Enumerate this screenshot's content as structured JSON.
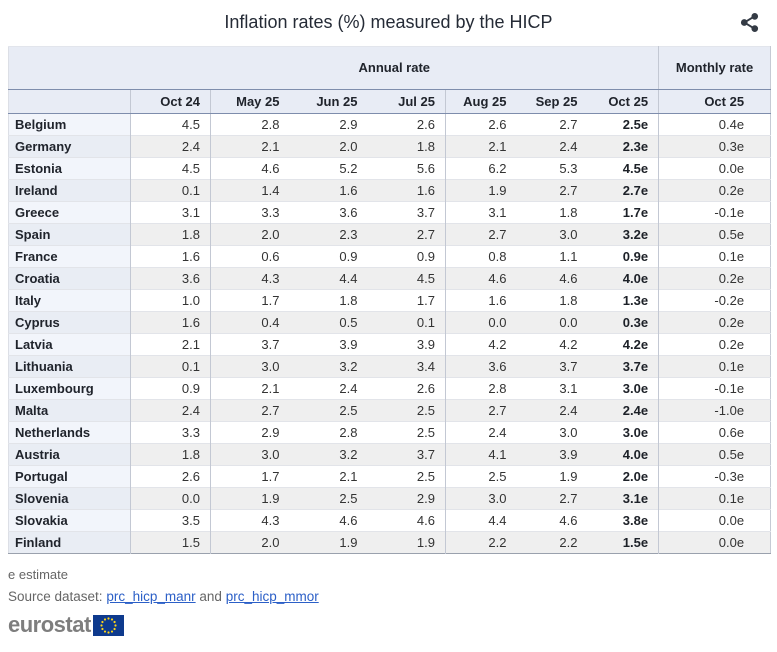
{
  "header": {
    "title": "Inflation rates (%) measured by the HICP"
  },
  "chart_data": {
    "type": "table",
    "title": "Inflation rates (%) measured by the HICP",
    "column_groups": {
      "annual": "Annual rate",
      "monthly": "Monthly rate"
    },
    "columns": [
      "Oct 24",
      "May 25",
      "Jun 25",
      "Jul 25",
      "Aug 25",
      "Sep 25",
      "Oct 25"
    ],
    "monthly_column_label": "Oct 25",
    "rows": [
      {
        "country": "Belgium",
        "annual": [
          "4.5",
          "2.8",
          "2.9",
          "2.6",
          "2.6",
          "2.7"
        ],
        "latest": "2.5e",
        "monthly": "0.4e"
      },
      {
        "country": "Germany",
        "annual": [
          "2.4",
          "2.1",
          "2.0",
          "1.8",
          "2.1",
          "2.4"
        ],
        "latest": "2.3e",
        "monthly": "0.3e"
      },
      {
        "country": "Estonia",
        "annual": [
          "4.5",
          "4.6",
          "5.2",
          "5.6",
          "6.2",
          "5.3"
        ],
        "latest": "4.5e",
        "monthly": "0.0e"
      },
      {
        "country": "Ireland",
        "annual": [
          "0.1",
          "1.4",
          "1.6",
          "1.6",
          "1.9",
          "2.7"
        ],
        "latest": "2.7e",
        "monthly": "0.2e"
      },
      {
        "country": "Greece",
        "annual": [
          "3.1",
          "3.3",
          "3.6",
          "3.7",
          "3.1",
          "1.8"
        ],
        "latest": "1.7e",
        "monthly": "-0.1e"
      },
      {
        "country": "Spain",
        "annual": [
          "1.8",
          "2.0",
          "2.3",
          "2.7",
          "2.7",
          "3.0"
        ],
        "latest": "3.2e",
        "monthly": "0.5e"
      },
      {
        "country": "France",
        "annual": [
          "1.6",
          "0.6",
          "0.9",
          "0.9",
          "0.8",
          "1.1"
        ],
        "latest": "0.9e",
        "monthly": "0.1e"
      },
      {
        "country": "Croatia",
        "annual": [
          "3.6",
          "4.3",
          "4.4",
          "4.5",
          "4.6",
          "4.6"
        ],
        "latest": "4.0e",
        "monthly": "0.2e"
      },
      {
        "country": "Italy",
        "annual": [
          "1.0",
          "1.7",
          "1.8",
          "1.7",
          "1.6",
          "1.8"
        ],
        "latest": "1.3e",
        "monthly": "-0.2e"
      },
      {
        "country": "Cyprus",
        "annual": [
          "1.6",
          "0.4",
          "0.5",
          "0.1",
          "0.0",
          "0.0"
        ],
        "latest": "0.3e",
        "monthly": "0.2e"
      },
      {
        "country": "Latvia",
        "annual": [
          "2.1",
          "3.7",
          "3.9",
          "3.9",
          "4.2",
          "4.2"
        ],
        "latest": "4.2e",
        "monthly": "0.2e"
      },
      {
        "country": "Lithuania",
        "annual": [
          "0.1",
          "3.0",
          "3.2",
          "3.4",
          "3.6",
          "3.7"
        ],
        "latest": "3.7e",
        "monthly": "0.1e"
      },
      {
        "country": "Luxembourg",
        "annual": [
          "0.9",
          "2.1",
          "2.4",
          "2.6",
          "2.8",
          "3.1"
        ],
        "latest": "3.0e",
        "monthly": "-0.1e"
      },
      {
        "country": "Malta",
        "annual": [
          "2.4",
          "2.7",
          "2.5",
          "2.5",
          "2.7",
          "2.4"
        ],
        "latest": "2.4e",
        "monthly": "-1.0e"
      },
      {
        "country": "Netherlands",
        "annual": [
          "3.3",
          "2.9",
          "2.8",
          "2.5",
          "2.4",
          "3.0"
        ],
        "latest": "3.0e",
        "monthly": "0.6e"
      },
      {
        "country": "Austria",
        "annual": [
          "1.8",
          "3.0",
          "3.2",
          "3.7",
          "4.1",
          "3.9"
        ],
        "latest": "4.0e",
        "monthly": "0.5e"
      },
      {
        "country": "Portugal",
        "annual": [
          "2.6",
          "1.7",
          "2.1",
          "2.5",
          "2.5",
          "1.9"
        ],
        "latest": "2.0e",
        "monthly": "-0.3e"
      },
      {
        "country": "Slovenia",
        "annual": [
          "0.0",
          "1.9",
          "2.5",
          "2.9",
          "3.0",
          "2.7"
        ],
        "latest": "3.1e",
        "monthly": "0.1e"
      },
      {
        "country": "Slovakia",
        "annual": [
          "3.5",
          "4.3",
          "4.6",
          "4.6",
          "4.4",
          "4.6"
        ],
        "latest": "3.8e",
        "monthly": "0.0e"
      },
      {
        "country": "Finland",
        "annual": [
          "1.5",
          "2.0",
          "1.9",
          "1.9",
          "2.2",
          "2.2"
        ],
        "latest": "1.5e",
        "monthly": "0.0e"
      }
    ]
  },
  "footer": {
    "footnote": "e estimate",
    "source_label": "Source dataset:",
    "link1": "prc_hicp_manr",
    "conjunction": "and",
    "link2": "prc_hicp_mmor",
    "logo_text": "eurostat"
  },
  "colors": {
    "header_bg": "#e8ecf5",
    "header_rule": "#7e8dac",
    "stripe_bg": "#efefef",
    "country_col_bg": "#f2f5fb",
    "link_blue": "#2b5fc7",
    "eu_flag_blue": "#0e3a8d",
    "eu_star_yellow": "#ffd617"
  }
}
